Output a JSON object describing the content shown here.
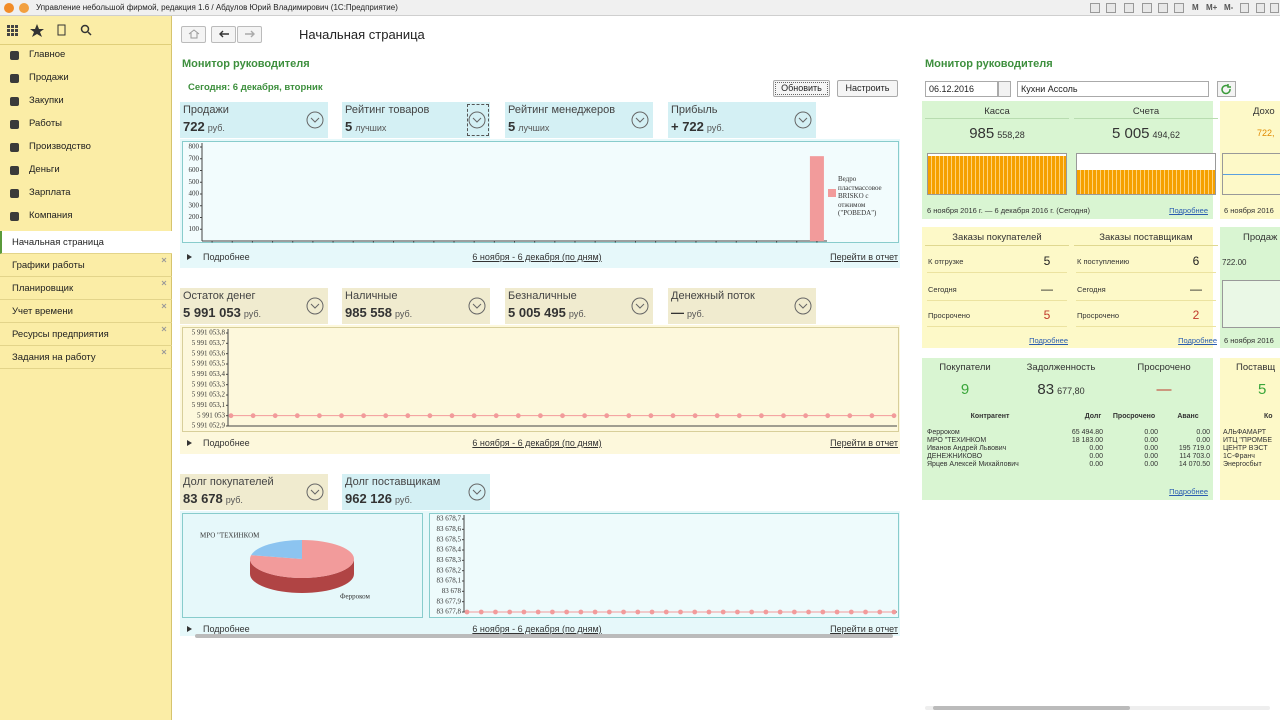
{
  "window": {
    "title": "Управление небольшой фирмой, редакция 1.6 / Абдулов Юрий Владимирович  (1С:Предприятие)",
    "toolbar": [
      "M",
      "M+",
      "M-"
    ]
  },
  "sidebar": {
    "sections": [
      "Главное",
      "Продажи",
      "Закупки",
      "Работы",
      "Производство",
      "Деньги",
      "Зарплата",
      "Компания"
    ],
    "tabs": [
      "Начальная страница",
      "Графики работы",
      "Планировщик",
      "Учет времени",
      "Ресурсы предприятия",
      "Задания на работу"
    ]
  },
  "page": {
    "title": "Начальная страница"
  },
  "dashboard": {
    "title": "Монитор руководителя",
    "today": "Сегодня:  6 декабря, вторник",
    "buttons": [
      "Обновить",
      "Настроить"
    ],
    "groups": [
      {
        "widgets": [
          {
            "label": "Продажи",
            "value": "722",
            "unit": "руб."
          },
          {
            "label": "Рейтинг товаров",
            "value": "5",
            "unit": "лучших"
          },
          {
            "label": "Рейтинг менеджеров",
            "value": "5",
            "unit": "лучших"
          },
          {
            "label": "Прибыль",
            "value": "+ 722",
            "unit": "руб."
          }
        ],
        "footer": {
          "more": "Подробнее",
          "period": "6 ноября - 6 декабря (по дням)",
          "report": "Перейти в отчет"
        }
      },
      {
        "widgets": [
          {
            "label": "Остаток денег",
            "value": "5 991 053",
            "unit": "руб."
          },
          {
            "label": "Наличные",
            "value": "985 558",
            "unit": "руб."
          },
          {
            "label": "Безналичные",
            "value": "5 005 495",
            "unit": "руб."
          },
          {
            "label": "Денежный поток",
            "value": "—",
            "unit": "руб."
          }
        ],
        "footer": {
          "more": "Подробнее",
          "period": "6 ноября - 6 декабря (по дням)",
          "report": "Перейти в отчет"
        }
      },
      {
        "widgets": [
          {
            "label": "Долг покупателей",
            "value": "83 678",
            "unit": "руб."
          },
          {
            "label": "Долг поставщикам",
            "value": "962 126",
            "unit": "руб."
          }
        ],
        "footer": {
          "more": "Подробнее",
          "period": "6 ноября - 6 декабря (по дням)",
          "report": "Перейти в отчет"
        }
      }
    ]
  },
  "charts": {
    "sales": {
      "type": "bar",
      "series": "Ведро пластмассовое BRISKO с отжимом (\"POBEDA\")",
      "color": "#f29b9b",
      "ylim": [
        0,
        800
      ],
      "yticks": [
        100,
        200,
        300,
        400,
        500,
        600,
        700,
        800
      ],
      "values": [
        0,
        0,
        0,
        0,
        0,
        0,
        0,
        0,
        0,
        0,
        0,
        0,
        0,
        0,
        0,
        0,
        0,
        0,
        0,
        0,
        0,
        0,
        0,
        0,
        0,
        0,
        0,
        0,
        0,
        0,
        722
      ]
    },
    "cash": {
      "type": "line",
      "color": "#f29b9b",
      "ylim": [
        5991052.9,
        5991053.8
      ],
      "yticks": [
        {
          "value": 5991052.9,
          "label": "5 991 052,9"
        },
        {
          "value": 5991053,
          "label": "5 991 053"
        },
        {
          "value": 5991053.1,
          "label": "5 991 053,1"
        },
        {
          "value": 5991053.2,
          "label": "5 991 053,2"
        },
        {
          "value": 5991053.3,
          "label": "5 991 053,3"
        },
        {
          "value": 5991053.4,
          "label": "5 991 053,4"
        },
        {
          "value": 5991053.5,
          "label": "5 991 053,5"
        },
        {
          "value": 5991053.6,
          "label": "5 991 053,6"
        },
        {
          "value": 5991053.7,
          "label": "5 991 053,7"
        },
        {
          "value": 5991053.8,
          "label": "5 991 053,8"
        }
      ],
      "values": [
        5991053,
        5991053,
        5991053,
        5991053,
        5991053,
        5991053,
        5991053,
        5991053,
        5991053,
        5991053,
        5991053,
        5991053,
        5991053,
        5991053,
        5991053,
        5991053,
        5991053,
        5991053,
        5991053,
        5991053,
        5991053,
        5991053,
        5991053,
        5991053,
        5991053,
        5991053,
        5991053,
        5991053,
        5991053,
        5991053,
        5991053
      ]
    },
    "debt": {
      "type": "line",
      "color": "#f29b9b",
      "ylim": [
        83677.8,
        83678.7
      ],
      "yticks": [
        {
          "value": 83677.8,
          "label": "83 677,8"
        },
        {
          "value": 83677.9,
          "label": "83 677,9"
        },
        {
          "value": 83678,
          "label": "83 678"
        },
        {
          "value": 83678.1,
          "label": "83 678,1"
        },
        {
          "value": 83678.2,
          "label": "83 678,2"
        },
        {
          "value": 83678.3,
          "label": "83 678,3"
        },
        {
          "value": 83678.4,
          "label": "83 678,4"
        },
        {
          "value": 83678.5,
          "label": "83 678,5"
        },
        {
          "value": 83678.6,
          "label": "83 678,6"
        },
        {
          "value": 83678.7,
          "label": "83 678,7"
        }
      ],
      "values": [
        83677.8,
        83677.8,
        83677.8,
        83677.8,
        83677.8,
        83677.8,
        83677.8,
        83677.8,
        83677.8,
        83677.8,
        83677.8,
        83677.8,
        83677.8,
        83677.8,
        83677.8,
        83677.8,
        83677.8,
        83677.8,
        83677.8,
        83677.8,
        83677.8,
        83677.8,
        83677.8,
        83677.8,
        83677.8,
        83677.8,
        83677.8,
        83677.8,
        83677.8,
        83677.8,
        83677.8
      ]
    },
    "pie": {
      "type": "pie",
      "categories": [
        "Ферроком",
        "МРО \"ТЕХИНКОМ"
      ],
      "values": [
        65494.8,
        18183
      ],
      "colors": [
        "#f29b9b",
        "#8cc4f0"
      ]
    }
  },
  "monitor": {
    "title": "Монитор руководителя",
    "date": "06.12.2016",
    "company": "Кухни Ассоль",
    "cash": {
      "cards": [
        {
          "label": "Касса",
          "value": "985",
          "fraction": "558,28"
        },
        {
          "label": "Счета",
          "value": "5 005",
          "fraction": "494,62"
        }
      ],
      "period": "6 ноября 2016 г. — 6 декабря 2016 г. (Сегодня)",
      "more": "Подробнее"
    },
    "income": {
      "label": "Дохо",
      "value": "722,",
      "date": "6 ноября 2016"
    },
    "orders": [
      {
        "title": "Заказы покупателей",
        "rows": [
          [
            "К отгрузке",
            "5"
          ],
          [
            "Сегодня",
            "—"
          ],
          [
            "Просрочено",
            "5"
          ]
        ],
        "more": "Подробнее"
      },
      {
        "title": "Заказы поставщикам",
        "rows": [
          [
            "К поступлению",
            "6"
          ],
          [
            "Сегодня",
            "—"
          ],
          [
            "Просрочено",
            "2"
          ]
        ],
        "more": "Подробнее"
      }
    ],
    "sales": {
      "label": "Продаж",
      "value": "722.00",
      "date": "6 ноября 2016"
    },
    "customers": {
      "stats": [
        {
          "label": "Покупатели",
          "value": "9"
        },
        {
          "label": "Задолженность",
          "value": "83",
          "fraction": "677,80"
        },
        {
          "label": "Просрочено",
          "value": "—"
        }
      ],
      "columns": [
        "Контрагент",
        "Долг",
        "Просрочено",
        "Аванс"
      ],
      "rows": [
        [
          "Ферроком",
          "65 494.80",
          "0.00",
          "0.00"
        ],
        [
          "МРО \"ТЕХИНКОМ",
          "18 183.00",
          "0.00",
          "0.00"
        ],
        [
          "Иванов Андрей Львович",
          "0.00",
          "0.00",
          "195 719.0"
        ],
        [
          "ДЕНЕЖНИКОВО",
          "0.00",
          "0.00",
          "114 703.0"
        ],
        [
          "Ярцев Алексей Михайлович",
          "0.00",
          "0.00",
          "14 070.50"
        ]
      ],
      "more": "Подробнее"
    },
    "suppliers": {
      "label": "Поставщ",
      "value": "5",
      "column": "Ко",
      "rows": [
        "АЛЬФАМАРТ",
        "ИТЦ \"ПРОМБЕ",
        "ЦЕНТР ВЭСТ",
        "1С-Франч",
        "Энергосбыт"
      ]
    }
  }
}
